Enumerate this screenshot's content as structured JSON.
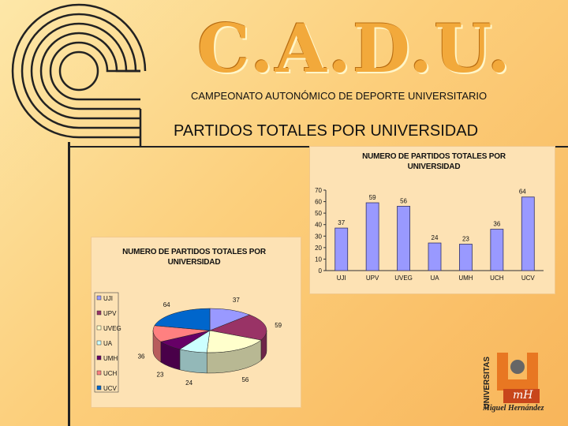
{
  "header": {
    "brand": "C.A.D.U.",
    "subtitle": "CAMPEONATO AUTONÓMICO DE DEPORTE UNIVERSITARIO",
    "section_title": "PARTIDOS TOTALES POR UNIVERSIDAD"
  },
  "branding": {
    "universitas": "UNIVERSITAS",
    "mh": "mH",
    "caption": "Miguel Hernández"
  },
  "colors": {
    "bar_fill": "#9999ff",
    "pie_UJI": "#9999ff",
    "pie_UPV": "#993366",
    "pie_UVEG": "#ffffcc",
    "pie_UA": "#ccffff",
    "pie_UMH": "#660066",
    "pie_UCH": "#ff8080",
    "pie_UCV": "#0066cc"
  },
  "chart_data": [
    {
      "type": "bar",
      "title": "NUMERO DE PARTIDOS TOTALES POR UNIVERSIDAD",
      "categories": [
        "UJI",
        "UPV",
        "UVEG",
        "UA",
        "UMH",
        "UCH",
        "UCV"
      ],
      "values": [
        37,
        59,
        56,
        24,
        23,
        36,
        64
      ],
      "data_labels": [
        "37",
        "59",
        "56",
        "24",
        "23",
        "36",
        "64"
      ],
      "ylim": [
        0,
        70
      ],
      "yticks": [
        "0",
        "10",
        "20",
        "30",
        "40",
        "50",
        "60",
        "70"
      ],
      "grid": false,
      "legend": "none"
    },
    {
      "type": "pie",
      "title": "NUMERO DE PARTIDOS TOTALES POR UNIVERSIDAD",
      "categories": [
        "UJI",
        "UPV",
        "UVEG",
        "UA",
        "UMH",
        "UCH",
        "UCV"
      ],
      "values": [
        37,
        59,
        56,
        24,
        23,
        36,
        64
      ],
      "data_labels": [
        "37",
        "59",
        "56",
        "24",
        "23",
        "36",
        "64"
      ],
      "legend": "left"
    }
  ]
}
